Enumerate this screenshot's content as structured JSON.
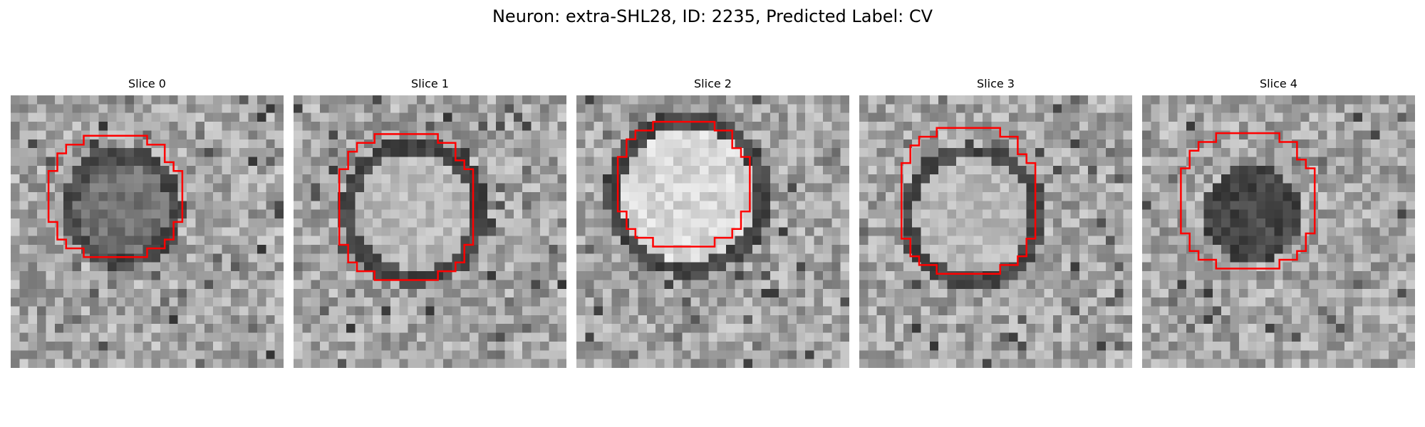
{
  "figure": {
    "title": "Neuron: extra-SHL28, ID: 2235, Predicted Label: CV"
  },
  "panels": [
    {
      "title": "Slice 0",
      "center_tone": "mid-dark",
      "ring_tone": "dark",
      "outline_color": "#ff0000"
    },
    {
      "title": "Slice 1",
      "center_tone": "light",
      "ring_tone": "dark",
      "outline_color": "#ff0000"
    },
    {
      "title": "Slice 2",
      "center_tone": "bright",
      "ring_tone": "dark",
      "outline_color": "#ff0000"
    },
    {
      "title": "Slice 3",
      "center_tone": "light",
      "ring_tone": "dark",
      "outline_color": "#ff0000"
    },
    {
      "title": "Slice 4",
      "center_tone": "dark",
      "ring_tone": "none",
      "outline_color": "#ff0000"
    }
  ]
}
